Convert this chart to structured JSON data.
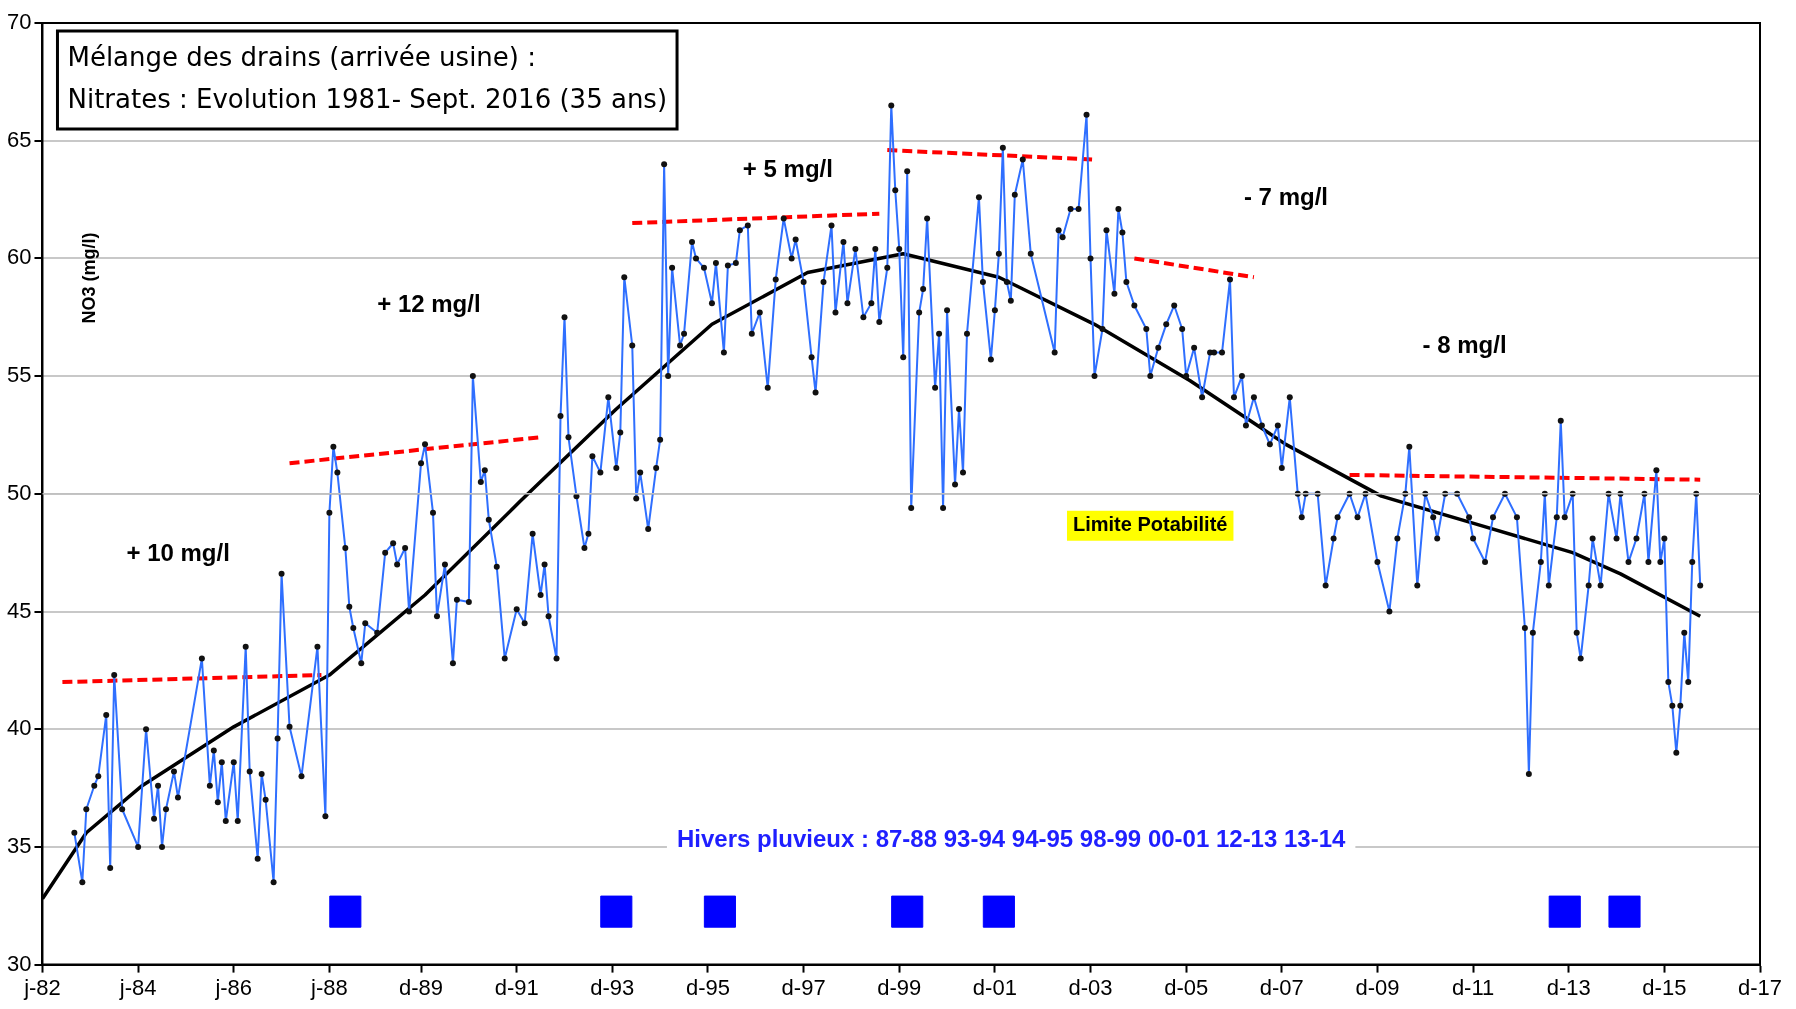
{
  "chart_data": {
    "type": "line",
    "title": "Mélange des drains (arrivée usine) :",
    "subtitle": "Nitrates : Evolution 1981- Sept. 2016 (35 ans)",
    "ylabel": "NO3 (mg/l)",
    "xlim": [
      "1982-01",
      "2017-12"
    ],
    "xticks": [
      {
        "value": "1982-01",
        "label": "j-82"
      },
      {
        "value": "1984-01",
        "label": "j-84"
      },
      {
        "value": "1986-01",
        "label": "j-86"
      },
      {
        "value": "1988-01",
        "label": "j-88"
      },
      {
        "value": "1989-12",
        "label": "d-89"
      },
      {
        "value": "1991-12",
        "label": "d-91"
      },
      {
        "value": "1993-12",
        "label": "d-93"
      },
      {
        "value": "1995-12",
        "label": "d-95"
      },
      {
        "value": "1997-12",
        "label": "d-97"
      },
      {
        "value": "1999-12",
        "label": "d-99"
      },
      {
        "value": "2001-12",
        "label": "d-01"
      },
      {
        "value": "2003-12",
        "label": "d-03"
      },
      {
        "value": "2005-12",
        "label": "d-05"
      },
      {
        "value": "2007-12",
        "label": "d-07"
      },
      {
        "value": "2009-12",
        "label": "d-09"
      },
      {
        "value": "2011-12",
        "label": "d-11"
      },
      {
        "value": "2013-12",
        "label": "d-13"
      },
      {
        "value": "2015-12",
        "label": "d-15"
      },
      {
        "value": "2017-12",
        "label": "d-17"
      }
    ],
    "ylim": [
      30,
      70
    ],
    "yticks": [
      30,
      35,
      40,
      45,
      50,
      55,
      60,
      65,
      70
    ],
    "grid": "y",
    "legend": false,
    "series": [
      {
        "color": "#2f6fff",
        "marker": "circle",
        "line_style": "solid",
        "x": [
          "1982-09",
          "1982-11",
          "1982-12",
          "1983-02",
          "1983-03",
          "1983-05",
          "1983-06",
          "1983-07",
          "1983-09",
          "1984-01",
          "1984-03",
          "1984-05",
          "1984-06",
          "1984-07",
          "1984-08",
          "1984-10",
          "1984-11",
          "1985-05",
          "1985-07",
          "1985-08",
          "1985-09",
          "1985-10",
          "1985-11",
          "1986-01",
          "1986-02",
          "1986-04",
          "1986-05",
          "1986-07",
          "1986-08",
          "1986-09",
          "1986-11",
          "1986-12",
          "1987-01",
          "1987-03",
          "1987-06",
          "1987-10",
          "1987-12",
          "1988-01",
          "1988-02",
          "1988-03",
          "1988-05",
          "1988-06",
          "1988-07",
          "1988-09",
          "1988-10",
          "1989-01",
          "1989-03",
          "1989-05",
          "1989-06",
          "1989-08",
          "1989-09",
          "1989-12",
          "1990-01",
          "1990-03",
          "1990-04",
          "1990-06",
          "1990-08",
          "1990-09",
          "1990-12",
          "1991-01",
          "1991-03",
          "1991-04",
          "1991-05",
          "1991-07",
          "1991-09",
          "1991-12",
          "1992-02",
          "1992-04",
          "1992-06",
          "1992-07",
          "1992-08",
          "1992-10",
          "1992-11",
          "1992-12",
          "1993-01",
          "1993-03",
          "1993-05",
          "1993-06",
          "1993-07",
          "1993-09",
          "1993-11",
          "1994-01",
          "1994-02",
          "1994-03",
          "1994-05",
          "1994-06",
          "1994-07",
          "1994-09",
          "1994-11",
          "1994-12",
          "1995-01",
          "1995-02",
          "1995-03",
          "1995-05",
          "1995-06",
          "1995-08",
          "1995-09",
          "1995-11",
          "1996-01",
          "1996-02",
          "1996-04",
          "1996-05",
          "1996-07",
          "1996-08",
          "1996-10",
          "1996-11",
          "1997-01",
          "1997-03",
          "1997-05",
          "1997-07",
          "1997-09",
          "1997-10",
          "1997-12",
          "1998-02",
          "1998-03",
          "1998-05",
          "1998-07",
          "1998-08",
          "1998-10",
          "1998-11",
          "1999-01",
          "1999-03",
          "1999-05",
          "1999-06",
          "1999-07",
          "1999-09",
          "1999-10",
          "1999-11",
          "1999-12",
          "2000-01",
          "2000-02",
          "2000-03",
          "2000-05",
          "2000-06",
          "2000-07",
          "2000-09",
          "2000-10",
          "2000-11",
          "2000-12",
          "2001-02",
          "2001-03",
          "2001-04",
          "2001-05",
          "2001-08",
          "2001-09",
          "2001-11",
          "2001-12",
          "2002-01",
          "2002-02",
          "2002-03",
          "2002-04",
          "2002-05",
          "2002-07",
          "2002-09",
          "2003-03",
          "2003-04",
          "2003-05",
          "2003-07",
          "2003-09",
          "2003-11",
          "2003-12",
          "2004-01",
          "2004-03",
          "2004-04",
          "2004-06",
          "2004-07",
          "2004-08",
          "2004-09",
          "2004-11",
          "2005-02",
          "2005-03",
          "2005-05",
          "2005-07",
          "2005-09",
          "2005-11",
          "2005-12",
          "2006-02",
          "2006-04",
          "2006-06",
          "2006-07",
          "2006-09",
          "2006-11",
          "2006-12",
          "2007-02",
          "2007-03",
          "2007-05",
          "2007-07",
          "2007-09",
          "2007-11",
          "2007-12",
          "2008-02",
          "2008-04",
          "2008-05",
          "2008-06",
          "2008-09",
          "2008-11",
          "2009-01",
          "2009-02",
          "2009-05",
          "2009-07",
          "2009-09",
          "2009-12",
          "2010-03",
          "2010-05",
          "2010-07",
          "2010-08",
          "2010-10",
          "2010-12",
          "2011-02",
          "2011-03",
          "2011-05",
          "2011-08",
          "2011-11",
          "2011-12",
          "2012-03",
          "2012-05",
          "2012-08",
          "2012-11",
          "2013-01",
          "2013-02",
          "2013-03",
          "2013-05",
          "2013-06",
          "2013-07",
          "2013-09",
          "2013-10",
          "2013-11",
          "2014-01",
          "2014-02",
          "2014-03",
          "2014-05",
          "2014-06",
          "2014-08",
          "2014-10",
          "2014-12",
          "2015-01",
          "2015-03",
          "2015-05",
          "2015-07",
          "2015-08",
          "2015-10",
          "2015-11",
          "2015-12",
          "2016-01",
          "2016-02",
          "2016-03",
          "2016-04",
          "2016-05",
          "2016-06",
          "2016-07",
          "2016-08",
          "2016-09"
        ],
        "values": [
          35.6,
          33.5,
          36.6,
          37.6,
          38.0,
          40.6,
          34.1,
          42.3,
          36.6,
          35.0,
          40.0,
          36.2,
          37.6,
          35.0,
          36.6,
          38.2,
          37.1,
          43.0,
          37.6,
          39.1,
          36.9,
          38.6,
          36.1,
          38.6,
          36.1,
          43.5,
          38.2,
          34.5,
          38.1,
          37.0,
          33.5,
          39.6,
          46.6,
          40.1,
          38.0,
          43.5,
          36.3,
          49.2,
          52.0,
          50.9,
          47.7,
          45.2,
          44.3,
          42.8,
          44.5,
          44.1,
          47.5,
          47.9,
          47.0,
          47.7,
          45.0,
          51.3,
          52.1,
          49.2,
          44.8,
          47.0,
          42.8,
          45.5,
          45.4,
          55.0,
          50.5,
          51.0,
          48.9,
          46.9,
          43.0,
          45.1,
          44.5,
          48.3,
          45.7,
          47.0,
          44.8,
          43.0,
          53.3,
          57.5,
          52.4,
          49.9,
          47.7,
          48.3,
          51.6,
          50.9,
          54.1,
          51.1,
          52.6,
          59.2,
          56.3,
          49.8,
          50.9,
          48.5,
          51.1,
          52.3,
          64.0,
          55.0,
          59.6,
          56.3,
          56.8,
          60.7,
          60.0,
          59.6,
          58.1,
          59.8,
          56.0,
          59.7,
          59.8,
          61.2,
          61.4,
          56.8,
          57.7,
          54.5,
          59.1,
          61.7,
          60.0,
          60.8,
          59.0,
          55.8,
          54.3,
          59.0,
          61.4,
          57.7,
          60.7,
          58.1,
          60.4,
          57.5,
          58.1,
          60.4,
          57.3,
          59.6,
          66.5,
          62.9,
          60.4,
          55.8,
          63.7,
          49.4,
          57.7,
          58.7,
          61.7,
          54.5,
          56.8,
          49.4,
          57.8,
          50.4,
          53.6,
          50.9,
          56.8,
          62.6,
          59.0,
          55.7,
          57.8,
          60.2,
          64.7,
          59.0,
          58.2,
          62.7,
          64.2,
          60.2,
          56.0,
          61.2,
          60.9,
          62.1,
          62.1,
          66.1,
          60.0,
          55.0,
          57.0,
          61.2,
          58.5,
          62.1,
          61.1,
          59.0,
          58.0,
          57.0,
          55.0,
          56.2,
          57.2,
          58.0,
          57.0,
          55.0,
          56.2,
          54.1,
          56.0,
          56.0,
          56.0,
          59.1,
          54.1,
          55.0,
          52.9,
          54.1,
          52.9,
          52.1,
          52.9,
          51.1,
          54.1,
          50.0,
          49.0,
          50.0,
          50.0,
          46.1,
          48.1,
          49.0,
          50.0,
          49.0,
          50.0,
          47.1,
          45.0,
          48.1,
          50.0,
          52.0,
          46.1,
          50.0,
          49.0,
          48.1,
          50.0,
          50.0,
          49.0,
          48.1,
          47.1,
          49.0,
          50.0,
          49.0,
          44.3,
          38.1,
          44.1,
          47.1,
          50.0,
          46.1,
          49.0,
          53.1,
          49.0,
          50.0,
          44.1,
          43.0,
          46.1,
          48.1,
          46.1,
          50.0,
          48.1,
          50.0,
          47.1,
          48.1,
          50.0,
          47.1,
          51.0,
          47.1,
          48.1,
          42.0,
          41.0,
          39.0,
          41.0,
          44.1,
          42.0,
          47.1,
          50.0,
          46.1
        ]
      },
      {
        "color": "#000000",
        "marker": "none",
        "line_style": "solid",
        "x": [
          "1982-01",
          "1982-12",
          "1984-02",
          "1986-01",
          "1988-01",
          "1990-01",
          "1992-01",
          "1994-01",
          "1996-01",
          "1998-01",
          "2000-01",
          "2002-01",
          "2004-01",
          "2006-01",
          "2008-01",
          "2010-01",
          "2012-01",
          "2014-01",
          "2015-01",
          "2016-09"
        ],
        "values": [
          32.8,
          35.6,
          37.6,
          40.1,
          42.3,
          45.7,
          49.7,
          53.6,
          57.2,
          59.4,
          60.2,
          59.2,
          57.2,
          54.8,
          52.1,
          49.9,
          48.7,
          47.5,
          46.6,
          44.8
        ]
      },
      {
        "color": "#ff0000",
        "marker": "none",
        "line_style": "dashed",
        "x": [
          "1982-06",
          "1987-11"
        ],
        "values": [
          42.0,
          42.3
        ]
      },
      {
        "color": "#ff0000",
        "marker": "none",
        "line_style": "dashed",
        "x": [
          "1987-03",
          "1992-06"
        ],
        "values": [
          51.3,
          52.4
        ]
      },
      {
        "color": "#ff0000",
        "marker": "none",
        "line_style": "dashed",
        "x": [
          "1994-05",
          "1999-07"
        ],
        "values": [
          61.5,
          61.9
        ]
      },
      {
        "color": "#ff0000",
        "marker": "none",
        "line_style": "dashed",
        "x": [
          "1999-09",
          "2004-01"
        ],
        "values": [
          64.6,
          64.2
        ]
      },
      {
        "color": "#ff0000",
        "marker": "none",
        "line_style": "dashed",
        "x": [
          "2004-11",
          "2007-05"
        ],
        "values": [
          60.0,
          59.2
        ]
      },
      {
        "color": "#ff0000",
        "marker": "none",
        "line_style": "dashed",
        "x": [
          "2009-05",
          "2016-09"
        ],
        "values": [
          50.8,
          50.6
        ]
      },
      {
        "type": "scatter",
        "color": "#0000ff",
        "marker": "square",
        "x": [
          "1988-05",
          "1994-01",
          "1996-03",
          "2000-02",
          "2002-01",
          "2013-11",
          "2015-02"
        ],
        "values": [
          32.25,
          32.25,
          32.25,
          32.25,
          32.25,
          32.25,
          32.25
        ]
      }
    ],
    "ref_lines": [
      {
        "axis": "y",
        "value": 50,
        "label": "Limite Potabilité",
        "color": "#c0c0c0"
      }
    ],
    "annotations": [
      "+ 10 mg/l",
      "+ 12 mg/l",
      "+ 5 mg/l",
      "- 7 mg/l",
      "- 8 mg/l",
      "Hivers pluvieux : 87-88 93-94 94-95 98-99 00-01 12-13 13-14"
    ]
  }
}
